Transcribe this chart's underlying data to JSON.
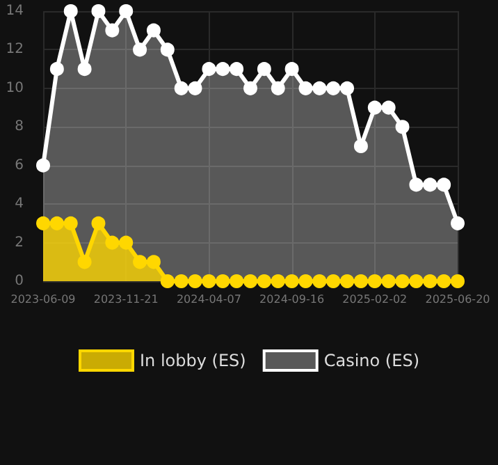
{
  "chart_data": {
    "type": "area",
    "categories": [
      "2023-06-09",
      null,
      null,
      null,
      null,
      null,
      "2023-11-21",
      null,
      null,
      null,
      null,
      null,
      "2024-04-07",
      null,
      null,
      null,
      null,
      null,
      "2024-09-16",
      null,
      null,
      null,
      null,
      null,
      "2025-02-02",
      null,
      null,
      null,
      null,
      null,
      "2025-06-20"
    ],
    "series": [
      {
        "name": "In lobby (ES)",
        "color": "#ffd700",
        "values": [
          3,
          3,
          3,
          1,
          3,
          2,
          2,
          1,
          1,
          0,
          0,
          0,
          0,
          0,
          0,
          0,
          0,
          0,
          0,
          0,
          0,
          0,
          0,
          0,
          0,
          0,
          0,
          0,
          0,
          0,
          0
        ]
      },
      {
        "name": "Casino (ES)",
        "color": "#ffffff",
        "values": [
          6,
          11,
          14,
          11,
          14,
          13,
          14,
          12,
          13,
          12,
          10,
          10,
          11,
          11,
          11,
          10,
          11,
          10,
          11,
          10,
          10,
          10,
          10,
          7,
          9,
          9,
          8,
          5,
          5,
          5,
          3
        ]
      }
    ],
    "ylim": [
      0,
      14
    ],
    "yticks": [
      0,
      2,
      4,
      6,
      8,
      10,
      12,
      14
    ],
    "grid": true,
    "legend": "bottom",
    "marker": "circle",
    "line_style": "solid"
  }
}
